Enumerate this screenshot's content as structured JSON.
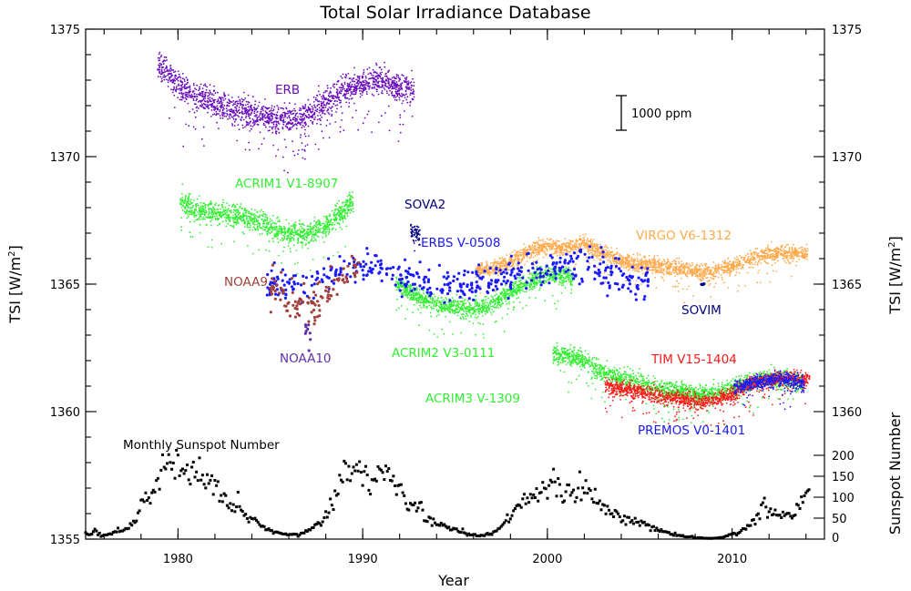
{
  "chart_data": {
    "type": "scatter",
    "title": "Total Solar Irradiance Database",
    "xlabel": "Year",
    "ylabel": "TSI [W/m²]",
    "ylabel_left": {
      "main": "TSI [W/m",
      "sup": "2",
      "end": "]"
    },
    "ylabel_right": {
      "main": "TSI [W/m",
      "sup": "2",
      "end": "]"
    },
    "ylabel_right_secondary": "Sunspot Number",
    "xlim": [
      1975,
      2015
    ],
    "ylim": [
      1355,
      1375
    ],
    "y2lim_sunspot": [
      0,
      200
    ],
    "x_ticks": [
      "1980",
      "1990",
      "2000",
      "2010"
    ],
    "y_ticks": [
      "1355",
      "1360",
      "1365",
      "1370",
      "1375"
    ],
    "y_ticks_right": [
      "1360",
      "1365",
      "1370",
      "1375"
    ],
    "sunspot_ticks": [
      "0",
      "50",
      "100",
      "150",
      "200"
    ],
    "grid": false,
    "scale_bar": {
      "label": "1000 ppm",
      "value_ppm": 1000
    },
    "series": [
      {
        "name": "ERB",
        "color": "#6a0dbd",
        "spread": 0.45,
        "trend": [
          [
            1978.9,
            1373.6
          ],
          [
            1979.3,
            1373.4
          ],
          [
            1980,
            1372.8
          ],
          [
            1981,
            1372.4
          ],
          [
            1982,
            1372.1
          ],
          [
            1983,
            1371.9
          ],
          [
            1984,
            1371.7
          ],
          [
            1985,
            1371.5
          ],
          [
            1986,
            1371.5
          ],
          [
            1987,
            1371.6
          ],
          [
            1988,
            1372.1
          ],
          [
            1989,
            1372.6
          ],
          [
            1990,
            1372.9
          ],
          [
            1991,
            1373.0
          ],
          [
            1992,
            1372.7
          ],
          [
            1992.8,
            1372.6
          ]
        ]
      },
      {
        "name": "ACRIM1 V1-8907",
        "color": "#33ee33",
        "spread": 0.35,
        "trend": [
          [
            1980.1,
            1368.2
          ],
          [
            1981,
            1367.9
          ],
          [
            1982,
            1367.8
          ],
          [
            1983,
            1367.7
          ],
          [
            1983.8,
            1367.6
          ],
          [
            1984.4,
            1367.5
          ],
          [
            1985,
            1367.2
          ],
          [
            1986,
            1367.0
          ],
          [
            1987,
            1367.0
          ],
          [
            1988,
            1367.3
          ],
          [
            1989,
            1367.9
          ],
          [
            1989.5,
            1368.3
          ]
        ]
      },
      {
        "name": "ACRIM2 V3-0111",
        "color": "#33ee33",
        "spread": 0.3,
        "trend": [
          [
            1991.8,
            1365.0
          ],
          [
            1993,
            1364.5
          ],
          [
            1994,
            1364.2
          ],
          [
            1995,
            1364.1
          ],
          [
            1996,
            1364.0
          ],
          [
            1997,
            1364.2
          ],
          [
            1998,
            1364.7
          ],
          [
            1999,
            1365.1
          ],
          [
            2000,
            1365.4
          ],
          [
            2001,
            1365.3
          ],
          [
            2001.4,
            1365.2
          ]
        ]
      },
      {
        "name": "ACRIM3 V-1309",
        "color": "#33ee33",
        "spread": 0.3,
        "trend": [
          [
            2000.3,
            1362.3
          ],
          [
            2001,
            1362.2
          ],
          [
            2002,
            1362.0
          ],
          [
            2003,
            1361.5
          ],
          [
            2004,
            1361.3
          ],
          [
            2005,
            1361.1
          ],
          [
            2006,
            1360.9
          ],
          [
            2007,
            1360.8
          ],
          [
            2008,
            1360.7
          ],
          [
            2009,
            1360.7
          ],
          [
            2010,
            1360.9
          ],
          [
            2011,
            1361.2
          ],
          [
            2012,
            1361.3
          ],
          [
            2013,
            1361.2
          ],
          [
            2013.8,
            1361.2
          ]
        ]
      },
      {
        "name": "VIRGO V6-1312",
        "color": "#ffaa4c",
        "spread": 0.25,
        "trend": [
          [
            1996.1,
            1365.5
          ],
          [
            1997,
            1365.6
          ],
          [
            1998,
            1365.9
          ],
          [
            1999,
            1366.3
          ],
          [
            2000,
            1366.5
          ],
          [
            2001,
            1366.4
          ],
          [
            2002,
            1366.6
          ],
          [
            2003,
            1366.2
          ],
          [
            2004,
            1365.9
          ],
          [
            2005,
            1365.8
          ],
          [
            2006,
            1365.7
          ],
          [
            2007,
            1365.6
          ],
          [
            2008,
            1365.5
          ],
          [
            2009,
            1365.5
          ],
          [
            2010,
            1365.7
          ],
          [
            2011,
            1366.0
          ],
          [
            2012,
            1366.2
          ],
          [
            2013,
            1366.2
          ],
          [
            2014.1,
            1366.2
          ]
        ]
      },
      {
        "name": "TIM V15-1404",
        "color": "#ff1a1a",
        "spread": 0.25,
        "trend": [
          [
            2003.1,
            1361.0
          ],
          [
            2004,
            1360.9
          ],
          [
            2005,
            1360.8
          ],
          [
            2006,
            1360.6
          ],
          [
            2007,
            1360.5
          ],
          [
            2008,
            1360.4
          ],
          [
            2009,
            1360.4
          ],
          [
            2010,
            1360.7
          ],
          [
            2011,
            1361.1
          ],
          [
            2012,
            1361.2
          ],
          [
            2013,
            1361.3
          ],
          [
            2014.2,
            1361.3
          ]
        ]
      },
      {
        "name": "PREMOS V0-1401",
        "color": "#1a1aff",
        "spread": 0.25,
        "trend": [
          [
            2010.1,
            1360.9
          ],
          [
            2011,
            1361.1
          ],
          [
            2012,
            1361.2
          ],
          [
            2013,
            1361.3
          ],
          [
            2013.9,
            1361.1
          ]
        ]
      },
      {
        "name": "ERBS V-0508",
        "color": "#1a1aff",
        "spread": 0.55,
        "sparse": true,
        "trend": [
          [
            1984.8,
            1365.0
          ],
          [
            1987,
            1364.9
          ],
          [
            1989,
            1365.6
          ],
          [
            1990,
            1365.7
          ],
          [
            1991,
            1365.6
          ],
          [
            1992,
            1365.3
          ],
          [
            1994,
            1365.0
          ],
          [
            1996,
            1365.0
          ],
          [
            1998,
            1365.3
          ],
          [
            2000,
            1365.6
          ],
          [
            2002,
            1365.8
          ],
          [
            2004,
            1365.2
          ],
          [
            2005.5,
            1365.0
          ]
        ]
      },
      {
        "name": "NOAA9",
        "color": "#a0403a",
        "spread": 0.55,
        "sparse": true,
        "trend": [
          [
            1985,
            1365.0
          ],
          [
            1986,
            1364.4
          ],
          [
            1987,
            1364.1
          ],
          [
            1988,
            1364.5
          ],
          [
            1989,
            1365.3
          ],
          [
            1989.8,
            1365.6
          ]
        ]
      },
      {
        "name": "NOAA10",
        "color": "#6030a8",
        "spread": 0.3,
        "sparse": true,
        "trend": [
          [
            1986.8,
            1363.5
          ],
          [
            1987.2,
            1363.1
          ]
        ]
      },
      {
        "name": "SOVA2",
        "color": "#000080",
        "spread": 0.35,
        "trend": [
          [
            1992.6,
            1367.0
          ],
          [
            1993.1,
            1366.9
          ]
        ]
      },
      {
        "name": "SOVIM",
        "color": "#000080",
        "spread": 0.03,
        "sparse": true,
        "trend": [
          [
            2008.3,
            1365.0
          ],
          [
            2008.5,
            1365.0
          ]
        ]
      }
    ],
    "sunspot": {
      "name": "Monthly Sunspot Number",
      "color": "#000000",
      "values": [
        [
          1975,
          15
        ],
        [
          1975.25,
          10
        ],
        [
          1975.5,
          20
        ],
        [
          1975.75,
          12
        ],
        [
          1976,
          8
        ],
        [
          1976.25,
          12
        ],
        [
          1976.5,
          15
        ],
        [
          1976.75,
          18
        ],
        [
          1977,
          20
        ],
        [
          1977.25,
          25
        ],
        [
          1977.5,
          35
        ],
        [
          1977.75,
          45
        ],
        [
          1978,
          80
        ],
        [
          1978.25,
          95
        ],
        [
          1978.5,
          90
        ],
        [
          1978.75,
          120
        ],
        [
          1979,
          150
        ],
        [
          1979.25,
          160
        ],
        [
          1979.5,
          170
        ],
        [
          1979.75,
          185
        ],
        [
          1980,
          165
        ],
        [
          1980.25,
          170
        ],
        [
          1980.5,
          150
        ],
        [
          1980.75,
          160
        ],
        [
          1981,
          140
        ],
        [
          1981.25,
          150
        ],
        [
          1981.5,
          130
        ],
        [
          1981.75,
          135
        ],
        [
          1982,
          120
        ],
        [
          1982.25,
          110
        ],
        [
          1982.5,
          100
        ],
        [
          1982.75,
          90
        ],
        [
          1983,
          80
        ],
        [
          1983.25,
          90
        ],
        [
          1983.5,
          60
        ],
        [
          1983.75,
          50
        ],
        [
          1984,
          60
        ],
        [
          1984.25,
          45
        ],
        [
          1984.5,
          35
        ],
        [
          1984.75,
          25
        ],
        [
          1985,
          20
        ],
        [
          1985.25,
          18
        ],
        [
          1985.5,
          15
        ],
        [
          1985.75,
          12
        ],
        [
          1986,
          10
        ],
        [
          1986.25,
          12
        ],
        [
          1986.5,
          8
        ],
        [
          1986.75,
          15
        ],
        [
          1987,
          20
        ],
        [
          1987.25,
          25
        ],
        [
          1987.5,
          35
        ],
        [
          1987.75,
          40
        ],
        [
          1988,
          60
        ],
        [
          1988.25,
          80
        ],
        [
          1988.5,
          100
        ],
        [
          1988.75,
          120
        ],
        [
          1989,
          160
        ],
        [
          1989.25,
          170
        ],
        [
          1989.5,
          155
        ],
        [
          1989.75,
          190
        ],
        [
          1990,
          150
        ],
        [
          1990.25,
          160
        ],
        [
          1990.5,
          140
        ],
        [
          1990.75,
          150
        ],
        [
          1991,
          145
        ],
        [
          1991.25,
          160
        ],
        [
          1991.5,
          140
        ],
        [
          1991.75,
          130
        ],
        [
          1992,
          130
        ],
        [
          1992.25,
          100
        ],
        [
          1992.5,
          80
        ],
        [
          1992.75,
          85
        ],
        [
          1993,
          70
        ],
        [
          1993.25,
          60
        ],
        [
          1993.5,
          50
        ],
        [
          1993.75,
          40
        ],
        [
          1994,
          40
        ],
        [
          1994.25,
          35
        ],
        [
          1994.5,
          30
        ],
        [
          1994.75,
          25
        ],
        [
          1995,
          25
        ],
        [
          1995.25,
          20
        ],
        [
          1995.5,
          18
        ],
        [
          1995.75,
          12
        ],
        [
          1996,
          10
        ],
        [
          1996.25,
          8
        ],
        [
          1996.5,
          10
        ],
        [
          1996.75,
          12
        ],
        [
          1997,
          12
        ],
        [
          1997.25,
          20
        ],
        [
          1997.5,
          30
        ],
        [
          1997.75,
          45
        ],
        [
          1998,
          50
        ],
        [
          1998.25,
          70
        ],
        [
          1998.5,
          80
        ],
        [
          1998.75,
          95
        ],
        [
          1999,
          90
        ],
        [
          1999.25,
          105
        ],
        [
          1999.5,
          100
        ],
        [
          1999.75,
          120
        ],
        [
          2000,
          125
        ],
        [
          2000.25,
          160
        ],
        [
          2000.5,
          120
        ],
        [
          2000.75,
          110
        ],
        [
          2001,
          100
        ],
        [
          2001.25,
          130
        ],
        [
          2001.5,
          105
        ],
        [
          2001.75,
          120
        ],
        [
          2002,
          110
        ],
        [
          2002.25,
          115
        ],
        [
          2002.5,
          100
        ],
        [
          2002.75,
          95
        ],
        [
          2003,
          80
        ],
        [
          2003.25,
          70
        ],
        [
          2003.5,
          60
        ],
        [
          2003.75,
          65
        ],
        [
          2004,
          45
        ],
        [
          2004.25,
          50
        ],
        [
          2004.5,
          40
        ],
        [
          2004.75,
          40
        ],
        [
          2005,
          35
        ],
        [
          2005.25,
          40
        ],
        [
          2005.5,
          30
        ],
        [
          2005.75,
          25
        ],
        [
          2006,
          20
        ],
        [
          2006.25,
          18
        ],
        [
          2006.5,
          15
        ],
        [
          2006.75,
          12
        ],
        [
          2007,
          10
        ],
        [
          2007.25,
          8
        ],
        [
          2007.5,
          5
        ],
        [
          2007.75,
          6
        ],
        [
          2008,
          3
        ],
        [
          2008.25,
          4
        ],
        [
          2008.5,
          2
        ],
        [
          2008.75,
          2
        ],
        [
          2009,
          2
        ],
        [
          2009.25,
          3
        ],
        [
          2009.5,
          5
        ],
        [
          2009.75,
          8
        ],
        [
          2010,
          15
        ],
        [
          2010.25,
          12
        ],
        [
          2010.5,
          20
        ],
        [
          2010.75,
          25
        ],
        [
          2011,
          40
        ],
        [
          2011.25,
          50
        ],
        [
          2011.5,
          70
        ],
        [
          2011.75,
          90
        ],
        [
          2012,
          60
        ],
        [
          2012.25,
          65
        ],
        [
          2012.5,
          60
        ],
        [
          2012.75,
          55
        ],
        [
          2013,
          60
        ],
        [
          2013.25,
          55
        ],
        [
          2013.5,
          70
        ],
        [
          2013.75,
          90
        ],
        [
          2014,
          100
        ]
      ]
    }
  }
}
